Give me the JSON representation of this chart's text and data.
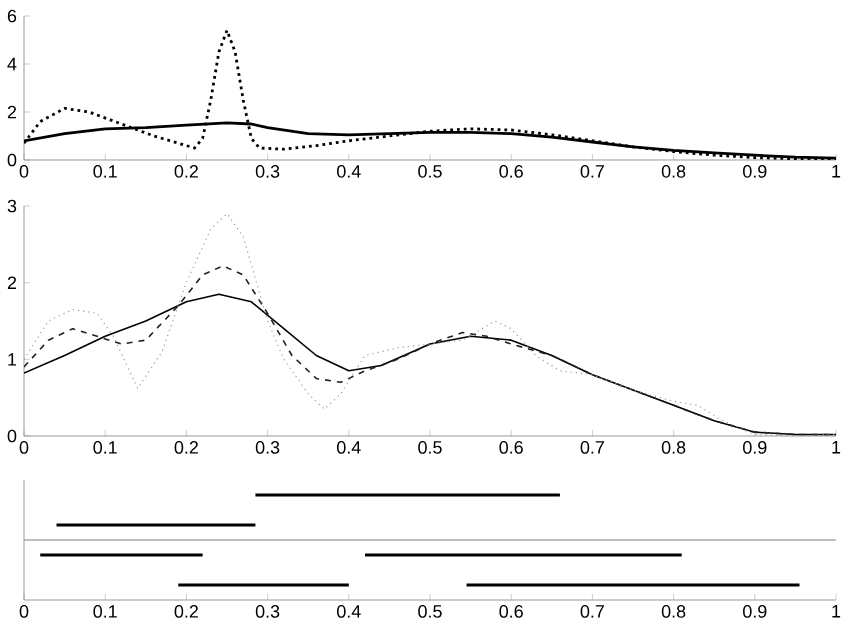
{
  "chart_data": [
    {
      "type": "line",
      "xlim": [
        0,
        1
      ],
      "ylim": [
        0,
        6
      ],
      "xticks": [
        0,
        0.1,
        0.2,
        0.3,
        0.4,
        0.5,
        0.6,
        0.7,
        0.8,
        0.9,
        1
      ],
      "yticks": [
        0,
        2,
        4,
        6
      ],
      "marker": "none",
      "series": [
        {
          "color": "#000000",
          "line_style": "solid",
          "x": [
            0,
            0.05,
            0.1,
            0.15,
            0.2,
            0.25,
            0.28,
            0.3,
            0.35,
            0.4,
            0.45,
            0.5,
            0.55,
            0.6,
            0.65,
            0.7,
            0.75,
            0.8,
            0.85,
            0.9,
            0.95,
            1
          ],
          "values": [
            0.8,
            1.1,
            1.3,
            1.35,
            1.45,
            1.55,
            1.5,
            1.35,
            1.1,
            1.05,
            1.1,
            1.15,
            1.15,
            1.1,
            0.95,
            0.75,
            0.55,
            0.4,
            0.3,
            0.2,
            0.12,
            0.08
          ]
        },
        {
          "color": "#000000",
          "line_style": "dotted",
          "x": [
            0,
            0.02,
            0.05,
            0.08,
            0.12,
            0.16,
            0.2,
            0.21,
            0.22,
            0.23,
            0.24,
            0.25,
            0.26,
            0.27,
            0.28,
            0.29,
            0.32,
            0.36,
            0.4,
            0.45,
            0.5,
            0.55,
            0.6,
            0.65,
            0.7,
            0.75,
            0.8,
            0.85,
            0.9,
            0.95,
            1
          ],
          "values": [
            0.7,
            1.6,
            2.15,
            2.0,
            1.5,
            1.0,
            0.6,
            0.5,
            0.9,
            2.5,
            4.5,
            5.4,
            4.5,
            2.5,
            0.9,
            0.5,
            0.45,
            0.6,
            0.8,
            1.0,
            1.2,
            1.3,
            1.25,
            1.05,
            0.8,
            0.55,
            0.35,
            0.2,
            0.1,
            0.05,
            0.05
          ]
        }
      ]
    },
    {
      "type": "line",
      "xlim": [
        0,
        1
      ],
      "ylim": [
        0,
        3
      ],
      "xticks": [
        0,
        0.1,
        0.2,
        0.3,
        0.4,
        0.5,
        0.6,
        0.7,
        0.8,
        0.9,
        1
      ],
      "yticks": [
        0,
        1,
        2,
        3
      ],
      "marker": "none",
      "series": [
        {
          "color": "#000000",
          "line_style": "solid",
          "x": [
            0,
            0.05,
            0.1,
            0.15,
            0.2,
            0.24,
            0.28,
            0.32,
            0.36,
            0.4,
            0.44,
            0.5,
            0.55,
            0.6,
            0.65,
            0.7,
            0.75,
            0.8,
            0.85,
            0.9,
            0.95,
            1
          ],
          "values": [
            0.82,
            1.05,
            1.3,
            1.5,
            1.75,
            1.85,
            1.75,
            1.4,
            1.05,
            0.85,
            0.92,
            1.2,
            1.3,
            1.25,
            1.05,
            0.8,
            0.6,
            0.4,
            0.2,
            0.05,
            0.02,
            0.02
          ]
        },
        {
          "color": "#222222",
          "line_style": "dashed",
          "x": [
            0,
            0.03,
            0.06,
            0.09,
            0.12,
            0.15,
            0.19,
            0.22,
            0.245,
            0.27,
            0.3,
            0.33,
            0.36,
            0.39,
            0.42,
            0.46,
            0.5,
            0.54,
            0.57,
            0.6,
            0.65,
            0.7,
            0.75,
            0.8,
            0.85,
            0.9,
            0.95,
            1
          ],
          "values": [
            0.9,
            1.25,
            1.4,
            1.3,
            1.2,
            1.25,
            1.7,
            2.1,
            2.22,
            2.1,
            1.6,
            1.05,
            0.75,
            0.7,
            0.85,
            1.0,
            1.2,
            1.35,
            1.3,
            1.2,
            1.05,
            0.8,
            0.6,
            0.4,
            0.2,
            0.05,
            0.02,
            0.02
          ]
        },
        {
          "color": "#999999",
          "line_style": "dotted",
          "x": [
            0,
            0.03,
            0.06,
            0.09,
            0.11,
            0.14,
            0.17,
            0.2,
            0.23,
            0.25,
            0.27,
            0.3,
            0.32,
            0.35,
            0.37,
            0.39,
            0.42,
            0.46,
            0.5,
            0.54,
            0.58,
            0.6,
            0.63,
            0.66,
            0.7,
            0.75,
            0.8,
            0.83,
            0.86,
            0.9,
            0.95,
            1
          ],
          "values": [
            1.0,
            1.5,
            1.65,
            1.6,
            1.3,
            0.62,
            1.1,
            2.0,
            2.7,
            2.9,
            2.6,
            1.5,
            1.0,
            0.55,
            0.35,
            0.55,
            1.05,
            1.15,
            1.2,
            1.25,
            1.5,
            1.4,
            1.05,
            0.85,
            0.8,
            0.6,
            0.45,
            0.4,
            0.2,
            0.02,
            0.0,
            0.02
          ]
        }
      ]
    },
    {
      "type": "bar",
      "orientation": "horizontal",
      "categories": [
        null,
        null,
        null,
        null
      ],
      "xlim": [
        0,
        1
      ],
      "xticks": [
        0,
        0.1,
        0.2,
        0.3,
        0.4,
        0.5,
        0.6,
        0.7,
        0.8,
        0.9,
        1
      ],
      "series": [
        {
          "color": "#000000",
          "base": [
            0.285,
            0.04,
            0.02,
            0.19
          ],
          "values": [
            0.375,
            0.245,
            0.2,
            0.21
          ]
        },
        {
          "color": "#000000",
          "base": [
            null,
            null,
            0.42,
            0.545
          ],
          "values": [
            null,
            null,
            0.39,
            0.41
          ]
        }
      ]
    }
  ]
}
